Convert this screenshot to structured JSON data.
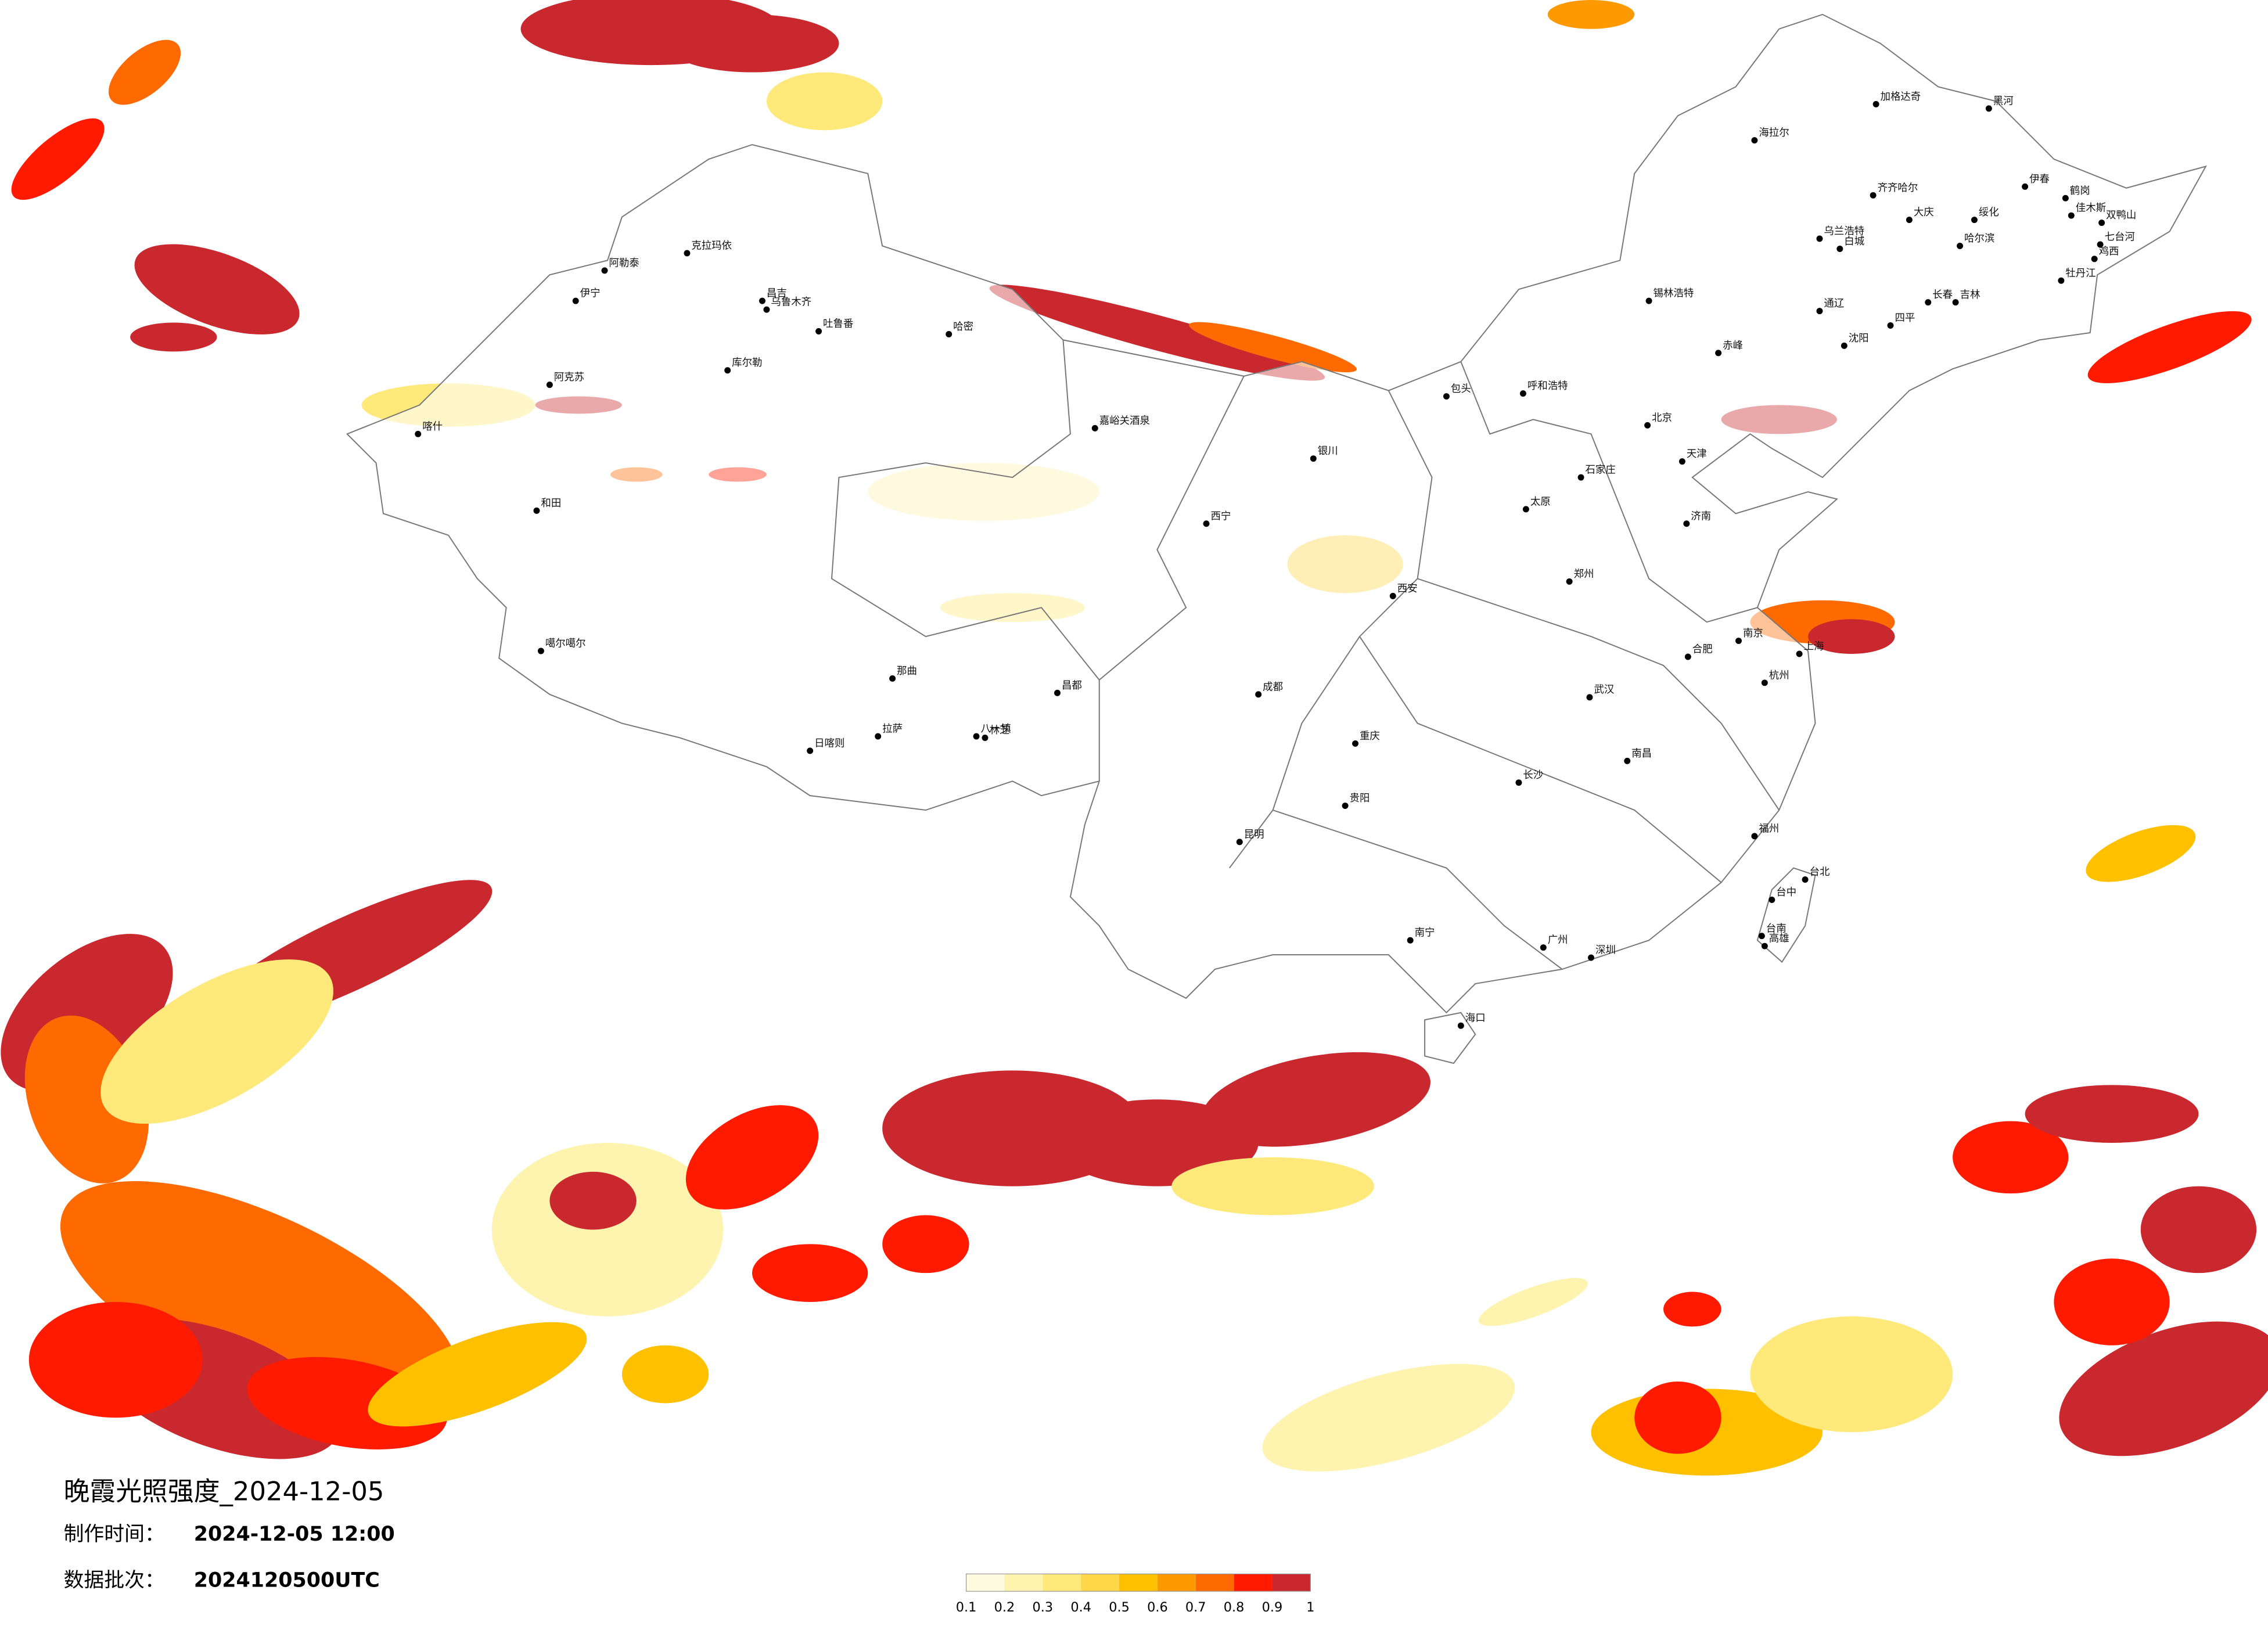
{
  "map": {
    "title": "晚霞光照强度_2024-12-05",
    "production_time_label": "制作时间：",
    "production_time": "2024-12-05 12:00",
    "data_batch_label": "数据批次：",
    "data_batch": "2024120500UTC",
    "legend": {
      "colors": [
        "#fffbe0",
        "#fff3b0",
        "#ffe97a",
        "#ffd84a",
        "#ffc000",
        "#ff9900",
        "#ff6a00",
        "#ff1a00",
        "#c8282e"
      ],
      "ticks": [
        0.1,
        0.2,
        0.3,
        0.4,
        0.5,
        0.6,
        0.7,
        0.8,
        0.9,
        1
      ]
    },
    "cities": [
      "加格达奇",
      "黑河",
      "海拉尔",
      "齐齐哈尔",
      "伊春",
      "鹤岗",
      "佳木斯",
      "双鸭山",
      "大庆",
      "绥化",
      "哈尔滨",
      "七台河",
      "鸡西",
      "牡丹江",
      "乌兰浩特",
      "白城",
      "锡林浩特",
      "通辽",
      "长春",
      "吉林",
      "四平",
      "沈阳",
      "赤峰",
      "阿勒泰",
      "克拉玛依",
      "伊宁",
      "昌吉",
      "乌鲁木齐",
      "吐鲁番",
      "哈密",
      "库尔勒",
      "阿克苏",
      "喀什",
      "和田",
      "噶尔噶尔",
      "日喀则",
      "拉萨",
      "那曲",
      "昌都",
      "八一镇",
      "林芝",
      "嘉峪关酒泉",
      "西宁",
      "银川",
      "呼和浩特",
      "包头",
      "北京",
      "天津",
      "石家庄",
      "太原",
      "济南",
      "郑州",
      "西安",
      "武汉",
      "南京",
      "上海",
      "杭州",
      "合肥",
      "长沙",
      "南昌",
      "福州",
      "台北",
      "台中",
      "台南",
      "高雄",
      "广州",
      "深圳",
      "南宁",
      "海口",
      "昆明",
      "贵阳",
      "成都",
      "重庆"
    ]
  }
}
